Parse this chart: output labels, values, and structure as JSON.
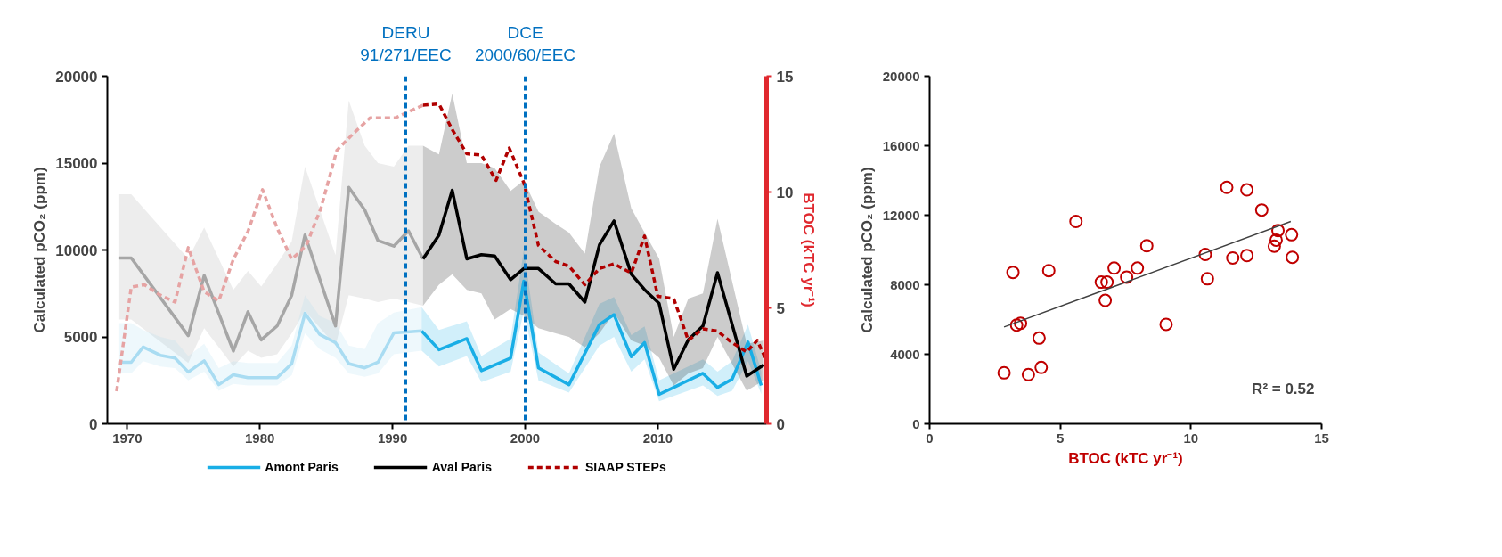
{
  "chart_data": [
    {
      "type": "line",
      "ylabel": "Calculated pCO₂ (ppm)",
      "y2label": "BTOC (kTC yr⁻¹)",
      "xlim": [
        1968.5,
        2018.2
      ],
      "xticks": [
        1970,
        1980,
        1990,
        2000,
        2010
      ],
      "ylim": [
        0,
        20000
      ],
      "yticks": [
        0,
        5000,
        10000,
        15000,
        20000
      ],
      "y2lim": [
        0,
        15
      ],
      "y2ticks": [
        0,
        5,
        10,
        15
      ],
      "grid": false,
      "legend": "bottom",
      "marker": "none",
      "series": [
        {
          "color": "#a6a6a6",
          "line_style": "solid",
          "x": [
            1969.4,
            1970.3,
            1974.6,
            1975.8,
            1978.0,
            1979.1,
            1980.1,
            1981.3,
            1982.4,
            1983.4,
            1985.7,
            1986.7,
            1987.9,
            1988.9,
            1990.1,
            1991.2,
            1992.3
          ],
          "values": [
            9540,
            9540,
            5070,
            8530,
            4180,
            6440,
            4830,
            5630,
            7400,
            10860,
            5630,
            13600,
            12310,
            10540,
            10220,
            11100,
            9490
          ],
          "upper": [
            13200,
            13200,
            9500,
            11300,
            7700,
            8800,
            7900,
            9200,
            10500,
            14800,
            9700,
            18600,
            16000,
            15000,
            14800,
            16000,
            16000
          ],
          "lower": [
            6000,
            6000,
            3500,
            5500,
            3300,
            4200,
            3800,
            4000,
            5200,
            6500,
            4500,
            7400,
            7200,
            7000,
            7200,
            7000,
            6800
          ]
        },
        {
          "color": "#a9dcf2",
          "line_style": "solid",
          "x": [
            1969.4,
            1970.3,
            1971.2,
            1972.5,
            1973.6,
            1974.6,
            1975.8,
            1976.9,
            1978.0,
            1979.1,
            1981.3,
            1982.4,
            1983.4,
            1984.5,
            1985.7,
            1986.7,
            1987.9,
            1988.9,
            1990.1,
            1992.2
          ],
          "values": [
            3540,
            3540,
            4420,
            3940,
            3780,
            2980,
            3620,
            2250,
            2820,
            2650,
            2650,
            3460,
            6360,
            5150,
            4670,
            3460,
            3220,
            3540,
            5230,
            5340
          ],
          "upper": [
            5800,
            5800,
            5400,
            5000,
            4800,
            3900,
            4600,
            3200,
            3600,
            3500,
            3500,
            4500,
            7400,
            6200,
            5800,
            4500,
            4300,
            5800,
            6400,
            6700
          ],
          "lower": [
            2900,
            2900,
            3600,
            3300,
            3200,
            2500,
            3000,
            1900,
            2300,
            2200,
            2200,
            2800,
            5200,
            4300,
            3800,
            2900,
            2700,
            2900,
            4000,
            4200
          ]
        },
        {
          "color": "#e6a3a3",
          "line_style": "dashed",
          "axis": "y2",
          "x": [
            1969.2,
            1970.3,
            1971.3,
            1972.5,
            1973.6,
            1974.6,
            1975.8,
            1976.9,
            1978.0,
            1979.1,
            1980.2,
            1981.3,
            1982.4,
            1983.5,
            1984.6,
            1985.8,
            1987.0,
            1988.3,
            1990.2,
            1992.3
          ],
          "values": [
            1.4,
            5.9,
            6.0,
            5.55,
            5.25,
            7.6,
            5.7,
            5.3,
            7.1,
            8.3,
            10.1,
            8.45,
            7.1,
            7.7,
            9.3,
            11.8,
            12.5,
            13.2,
            13.2,
            13.75
          ]
        },
        {
          "name": "Amont Paris",
          "color": "#19aee6",
          "line_style": "solid",
          "x": [
            1992.2,
            1993.5,
            1995.6,
            1996.7,
            1998.9,
            1999.9,
            2001.0,
            2003.3,
            2005.6,
            2006.7,
            2008.0,
            2009.0,
            2010.1,
            2013.4,
            2014.5,
            2015.6,
            2016.8,
            2017.8
          ],
          "values": [
            5340,
            4260,
            4900,
            3060,
            3780,
            8210,
            3220,
            2250,
            5710,
            6280,
            3860,
            4670,
            1690,
            2900,
            2090,
            2570,
            4700,
            2200
          ],
          "upper": [
            6700,
            5400,
            5900,
            3900,
            4900,
            10000,
            4100,
            2900,
            6900,
            7300,
            5100,
            5600,
            2500,
            3700,
            3000,
            3600,
            5700,
            3000
          ],
          "lower": [
            4200,
            3300,
            3900,
            2400,
            3000,
            6500,
            2500,
            1800,
            4500,
            5000,
            3000,
            3700,
            1300,
            2200,
            1600,
            1900,
            3600,
            1700
          ]
        },
        {
          "name": "Aval Paris",
          "color": "#000000",
          "line_style": "solid",
          "x": [
            1992.3,
            1993.5,
            1994.5,
            1995.6,
            1996.7,
            1997.7,
            1998.9,
            1999.9,
            2001.0,
            2002.3,
            2003.3,
            2004.5,
            2005.6,
            2006.7,
            2008.0,
            2009.0,
            2010.1,
            2011.2,
            2012.3,
            2013.4,
            2014.5,
            2016.7,
            2018.0
          ],
          "values": [
            9490,
            10860,
            13430,
            9490,
            9730,
            9650,
            8290,
            8930,
            8930,
            8050,
            8050,
            7000,
            10300,
            11670,
            8610,
            7720,
            6920,
            3140,
            4830,
            5630,
            8690,
            2740,
            3400
          ],
          "upper": [
            16000,
            15500,
            19000,
            15000,
            15000,
            14700,
            13400,
            14000,
            12200,
            11500,
            11000,
            9800,
            14800,
            16700,
            12400,
            11000,
            9500,
            5000,
            7200,
            7500,
            11800,
            4600,
            4800
          ],
          "lower": [
            6800,
            8000,
            8600,
            7700,
            7500,
            6000,
            6600,
            6200,
            5500,
            5200,
            5000,
            4400,
            5200,
            6400,
            4800,
            4500,
            3800,
            2200,
            2900,
            3200,
            5000,
            1900,
            2500
          ]
        },
        {
          "name": "SIAAP STEPs",
          "color": "#b00000",
          "line_style": "dashed",
          "axis": "y2",
          "x": [
            1992.3,
            1993.5,
            1994.5,
            1995.6,
            1996.7,
            1997.8,
            1998.8,
            1999.9,
            2001.0,
            2002.3,
            2003.3,
            2004.5,
            2005.6,
            2006.7,
            2008.0,
            2009.0,
            2010.0,
            2011.2,
            2012.3,
            2013.4,
            2014.5,
            2015.6,
            2016.7,
            2017.5,
            2018.2
          ],
          "values": [
            13.75,
            13.8,
            12.7,
            11.65,
            11.6,
            10.5,
            11.9,
            10.4,
            7.7,
            7.0,
            6.8,
            6.0,
            6.7,
            6.9,
            6.5,
            8.1,
            5.5,
            5.4,
            3.6,
            4.1,
            4.0,
            3.5,
            3.1,
            3.6,
            2.7
          ]
        }
      ],
      "ref_lines": [
        {
          "axis": "x",
          "value": 1991,
          "label": "DERU\n91/271/EEC",
          "color": "#0070c0",
          "line_style": "dashed"
        },
        {
          "axis": "x",
          "value": 2000,
          "label": "DCE\n2000/60/EEC",
          "color": "#0070c0",
          "line_style": "dashed"
        }
      ]
    },
    {
      "type": "scatter",
      "xlabel": "BTOC (kTC yr⁻¹)",
      "ylabel": "Calculated pCO₂ (ppm)",
      "xlim": [
        0,
        15
      ],
      "xticks": [
        0,
        5,
        10,
        15
      ],
      "ylim": [
        0,
        20000
      ],
      "yticks": [
        0,
        4000,
        8000,
        12000,
        16000,
        20000
      ],
      "grid": false,
      "annotations": [
        "R² = 0.52"
      ],
      "series": [
        {
          "color": "#c00000",
          "marker": "circle",
          "x": [
            2.85,
            3.19,
            3.33,
            3.48,
            3.78,
            4.19,
            4.27,
            4.56,
            5.6,
            6.57,
            6.79,
            6.72,
            7.06,
            7.54,
            7.95,
            8.31,
            9.05,
            10.55,
            10.63,
            11.37,
            11.6,
            12.14,
            12.14,
            12.71,
            13.19,
            13.26,
            13.33,
            13.85,
            13.88
          ],
          "values": [
            2930,
            8710,
            5680,
            5780,
            2830,
            4930,
            3240,
            8810,
            11640,
            8150,
            8150,
            7100,
            8960,
            8440,
            8960,
            10240,
            5720,
            9740,
            8340,
            13600,
            9540,
            9680,
            13460,
            12300,
            10220,
            10570,
            11120,
            10880,
            9580
          ]
        },
        {
          "type": "line",
          "color": "#404040",
          "x": [
            2.85,
            13.82
          ],
          "values": [
            5570,
            11640
          ]
        }
      ]
    }
  ]
}
